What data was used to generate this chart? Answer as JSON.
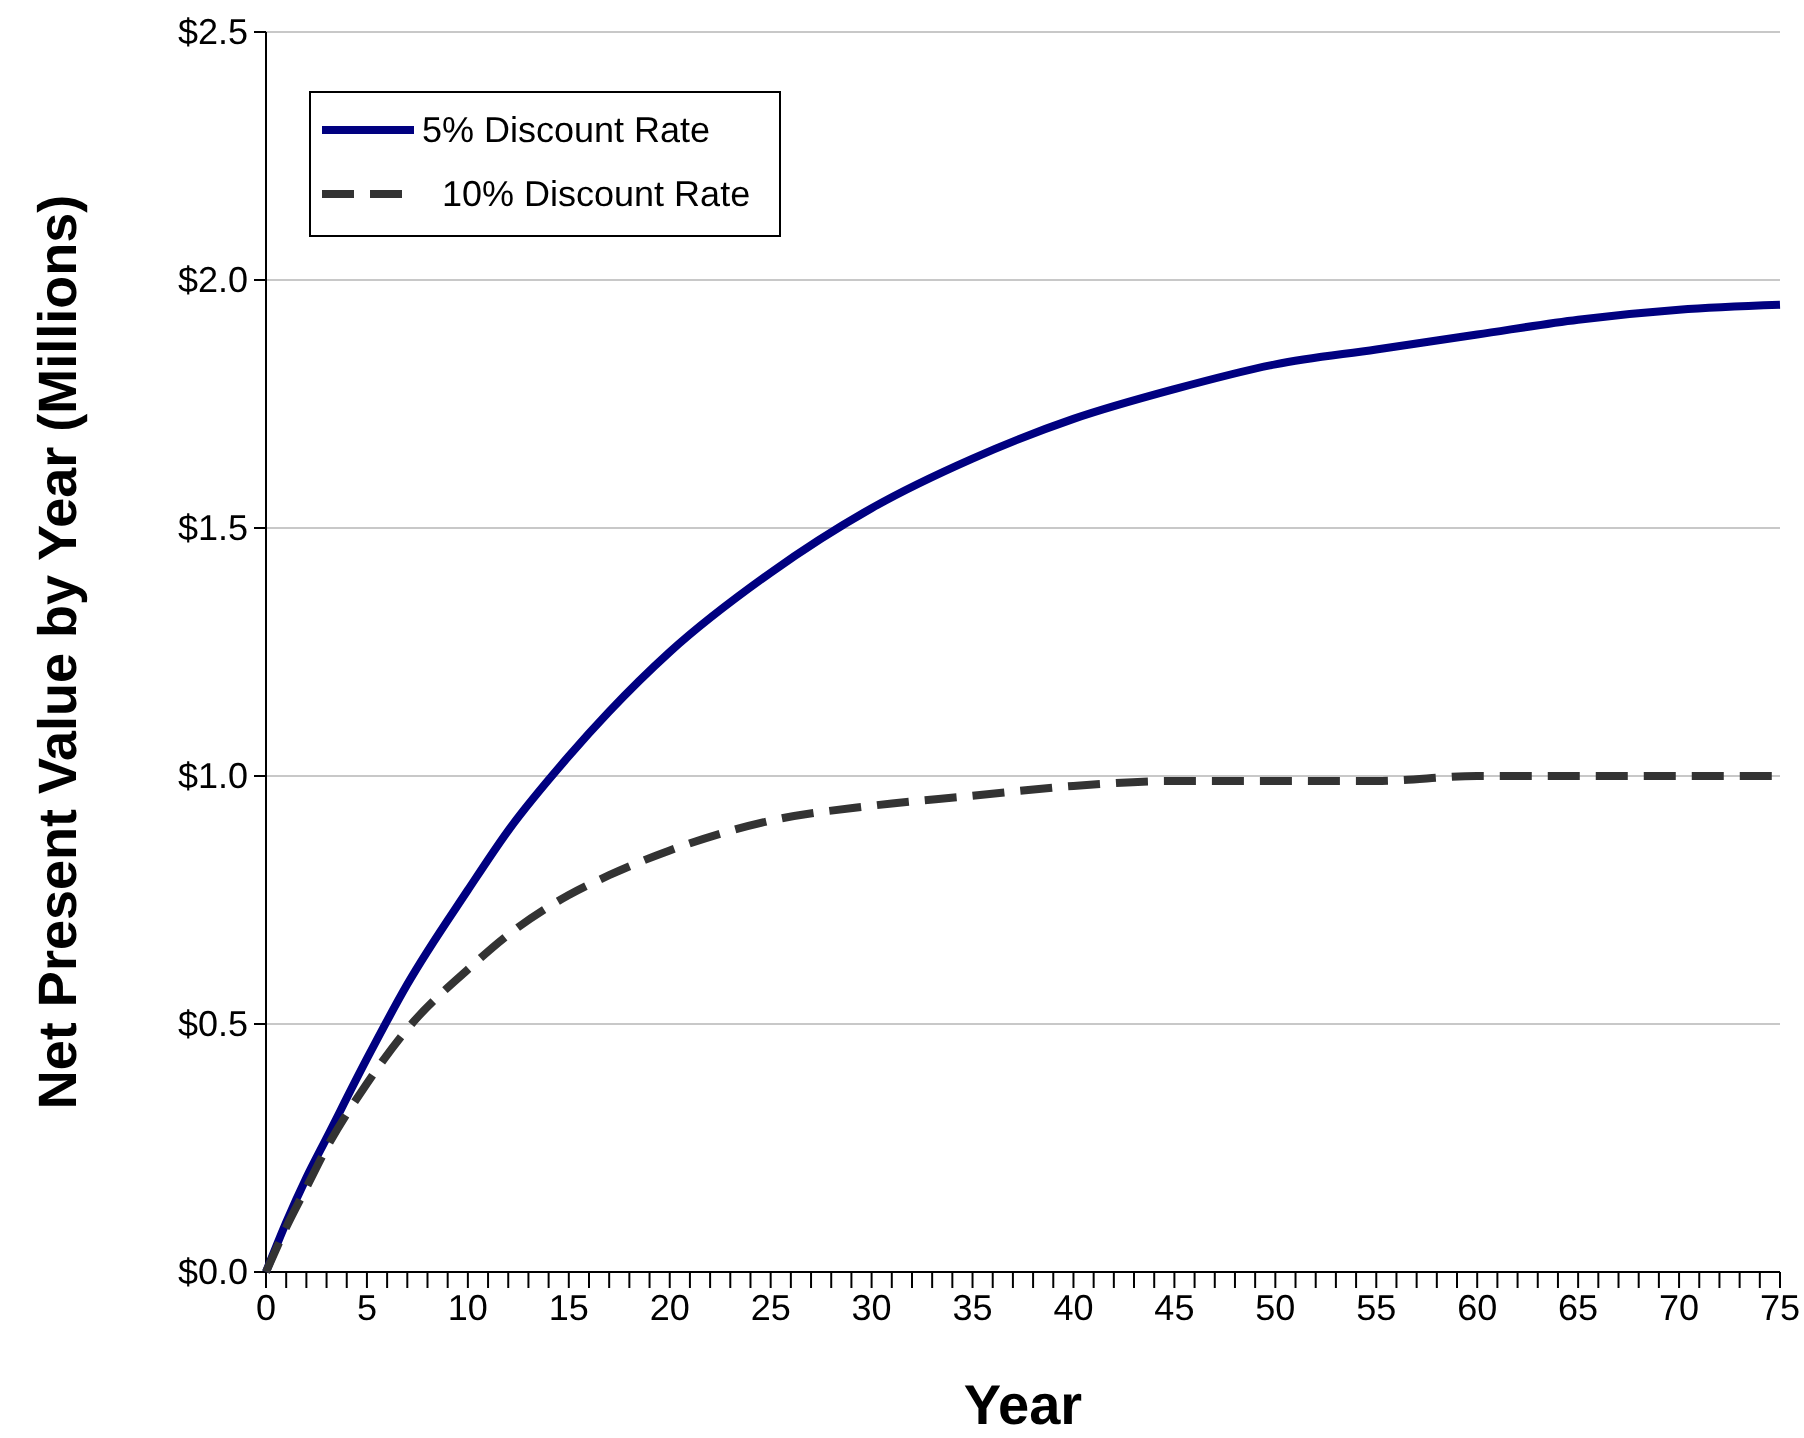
{
  "chart_data": {
    "type": "line",
    "xlabel": "Year",
    "ylabel": "Net Present Value by Year (Millions)",
    "x": [
      0,
      1,
      2,
      3,
      5,
      7,
      10,
      12,
      15,
      17,
      20,
      25,
      30,
      35,
      40,
      45,
      50,
      55,
      60,
      65,
      70,
      75
    ],
    "series": [
      {
        "name": "5% Discount Rate",
        "color": "#000080",
        "line_style": "solid",
        "values": [
          0,
          0.1,
          0.19,
          0.27,
          0.43,
          0.58,
          0.77,
          0.89,
          1.04,
          1.13,
          1.25,
          1.41,
          1.54,
          1.64,
          1.72,
          1.78,
          1.83,
          1.86,
          1.89,
          1.92,
          1.94,
          1.95
        ]
      },
      {
        "name": "10% Discount Rate",
        "color": "#333333",
        "line_style": "dashed",
        "values": [
          0,
          0.09,
          0.17,
          0.25,
          0.38,
          0.49,
          0.61,
          0.68,
          0.76,
          0.8,
          0.85,
          0.91,
          0.94,
          0.96,
          0.98,
          0.99,
          0.99,
          0.99,
          1.0,
          1.0,
          1.0,
          1.0
        ]
      }
    ],
    "xlim": [
      0,
      75
    ],
    "xticks": [
      0,
      {
        "value": 1,
        "label": null
      },
      {
        "value": 2,
        "label": null
      },
      {
        "value": 3,
        "label": null
      },
      {
        "value": 4,
        "label": null
      },
      5,
      {
        "value": 6,
        "label": null
      },
      {
        "value": 7,
        "label": null
      },
      {
        "value": 8,
        "label": null
      },
      {
        "value": 9,
        "label": null
      },
      10,
      {
        "value": 11,
        "label": null
      },
      {
        "value": 12,
        "label": null
      },
      {
        "value": 13,
        "label": null
      },
      {
        "value": 14,
        "label": null
      },
      15,
      {
        "value": 16,
        "label": null
      },
      {
        "value": 17,
        "label": null
      },
      {
        "value": 18,
        "label": null
      },
      {
        "value": 19,
        "label": null
      },
      20,
      {
        "value": 21,
        "label": null
      },
      {
        "value": 22,
        "label": null
      },
      {
        "value": 23,
        "label": null
      },
      {
        "value": 24,
        "label": null
      },
      25,
      {
        "value": 26,
        "label": null
      },
      {
        "value": 27,
        "label": null
      },
      {
        "value": 28,
        "label": null
      },
      {
        "value": 29,
        "label": null
      },
      30,
      {
        "value": 31,
        "label": null
      },
      {
        "value": 32,
        "label": null
      },
      {
        "value": 33,
        "label": null
      },
      {
        "value": 34,
        "label": null
      },
      35,
      {
        "value": 36,
        "label": null
      },
      {
        "value": 37,
        "label": null
      },
      {
        "value": 38,
        "label": null
      },
      {
        "value": 39,
        "label": null
      },
      40,
      {
        "value": 41,
        "label": null
      },
      {
        "value": 42,
        "label": null
      },
      {
        "value": 43,
        "label": null
      },
      {
        "value": 44,
        "label": null
      },
      45,
      {
        "value": 46,
        "label": null
      },
      {
        "value": 47,
        "label": null
      },
      {
        "value": 48,
        "label": null
      },
      {
        "value": 49,
        "label": null
      },
      50,
      {
        "value": 51,
        "label": null
      },
      {
        "value": 52,
        "label": null
      },
      {
        "value": 53,
        "label": null
      },
      {
        "value": 54,
        "label": null
      },
      55,
      {
        "value": 56,
        "label": null
      },
      {
        "value": 57,
        "label": null
      },
      {
        "value": 58,
        "label": null
      },
      {
        "value": 59,
        "label": null
      },
      60,
      {
        "value": 61,
        "label": null
      },
      {
        "value": 62,
        "label": null
      },
      {
        "value": 63,
        "label": null
      },
      {
        "value": 64,
        "label": null
      },
      65,
      {
        "value": 66,
        "label": null
      },
      {
        "value": 67,
        "label": null
      },
      {
        "value": 68,
        "label": null
      },
      {
        "value": 69,
        "label": null
      },
      70,
      {
        "value": 71,
        "label": null
      },
      {
        "value": 72,
        "label": null
      },
      {
        "value": 73,
        "label": null
      },
      {
        "value": 74,
        "label": null
      },
      75
    ],
    "ylim": [
      0,
      2.5
    ],
    "yticks": [
      {
        "value": 0,
        "label": "$0.0"
      },
      {
        "value": 0.5,
        "label": "$0.5"
      },
      {
        "value": 1,
        "label": "$1.0"
      },
      {
        "value": 1.5,
        "label": "$1.5"
      },
      {
        "value": 2,
        "label": "$2.0"
      },
      {
        "value": 2.5,
        "label": "$2.5"
      }
    ],
    "grid": "y",
    "legend": "top left"
  }
}
